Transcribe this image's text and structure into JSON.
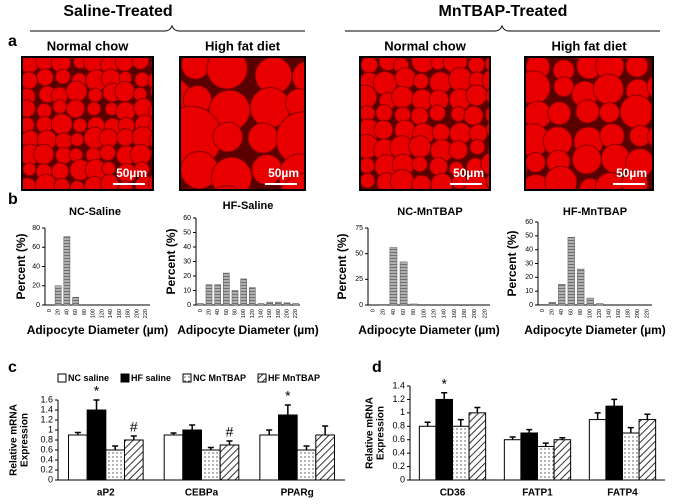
{
  "figure": {
    "headers": [
      "Saline-Treated",
      "MnTBAP-Treated"
    ],
    "panel_labels": [
      "a",
      "b",
      "c",
      "d"
    ],
    "images": [
      {
        "label": "Normal chow",
        "scale": "50µm"
      },
      {
        "label": "High fat diet",
        "scale": "50µm"
      },
      {
        "label": "Normal chow",
        "scale": "50µm"
      },
      {
        "label": "High fat diet",
        "scale": "50µm"
      }
    ]
  },
  "chart_data": [
    {
      "type": "bar",
      "title": "NC-Saline",
      "xlabel": "Adipocyte Diameter (µm)",
      "ylabel": "Percent (%)",
      "color": "#a0a0a0",
      "categories": [
        "0",
        "20",
        "40",
        "60",
        "80",
        "100",
        "120",
        "140",
        "160",
        "180",
        "200",
        "220"
      ],
      "values": [
        0,
        20,
        71,
        8,
        0,
        0,
        0,
        0,
        0,
        0,
        0,
        0
      ],
      "ylim": [
        0,
        80
      ],
      "yticks": [
        0,
        20,
        40,
        60,
        80
      ]
    },
    {
      "type": "bar",
      "title": "HF-Saline",
      "xlabel": "Adipocyte Diameter (µm)",
      "ylabel": "Percent (%)",
      "color": "#a0a0a0",
      "categories": [
        "0",
        "20",
        "40",
        "60",
        "80",
        "100",
        "120",
        "140",
        "160",
        "180",
        "200",
        "220"
      ],
      "values": [
        1,
        14,
        14,
        22,
        10,
        18,
        12,
        1,
        2,
        2,
        1.5,
        1
      ],
      "ylim": [
        0,
        60
      ],
      "yticks": [
        0,
        10,
        20,
        30,
        40,
        50,
        60
      ]
    },
    {
      "type": "bar",
      "title": "NC-MnTBAP",
      "xlabel": "Adipocyte Diameter (µm)",
      "ylabel": "Percent (%)",
      "color": "#a0a0a0",
      "categories": [
        "0",
        "20",
        "40",
        "60",
        "80",
        "100",
        "120",
        "140",
        "160",
        "180",
        "200",
        "220"
      ],
      "values": [
        0,
        0.5,
        56,
        42,
        1,
        0,
        0,
        0,
        0,
        0,
        0,
        0
      ],
      "ylim": [
        0,
        75
      ],
      "yticks": [
        0,
        25,
        50,
        75
      ]
    },
    {
      "type": "bar",
      "title": "HF-MnTBAP",
      "xlabel": "Adipocyte Diameter (µm)",
      "ylabel": "Percent (%)",
      "color": "#a0a0a0",
      "categories": [
        "0",
        "20",
        "40",
        "60",
        "80",
        "100",
        "120",
        "140",
        "160",
        "180",
        "200",
        "220"
      ],
      "values": [
        0.5,
        2,
        15,
        49,
        26,
        5,
        1,
        0,
        0,
        0,
        0,
        0
      ],
      "ylim": [
        0,
        60
      ],
      "yticks": [
        0,
        10,
        20,
        30,
        40,
        50,
        60
      ]
    },
    {
      "type": "bar",
      "ylabel": [
        "Relative mRNA",
        "Expression"
      ],
      "legend": "top",
      "categories": [
        "aP2",
        "CEBPa",
        "PPARg"
      ],
      "ylim": [
        0,
        1.6
      ],
      "yticks": [
        0,
        0.2,
        0.4,
        0.6,
        0.8,
        1,
        1.2,
        1.4,
        1.6
      ],
      "series": [
        {
          "name": "NC saline",
          "color": "#ffffff",
          "values": [
            0.9,
            0.9,
            0.9
          ],
          "errors": [
            0.05,
            0.04,
            0.1
          ],
          "annotations": [
            null,
            null,
            null
          ]
        },
        {
          "name": "HF saline",
          "color": "#000000",
          "values": [
            1.4,
            1.0,
            1.3
          ],
          "errors": [
            0.2,
            0.1,
            0.2
          ],
          "annotations": [
            "*",
            null,
            "*"
          ]
        },
        {
          "name": "NC MnTBAP",
          "color": "#ffffff",
          "pattern": "dots",
          "values": [
            0.6,
            0.6,
            0.6
          ],
          "errors": [
            0.08,
            0.05,
            0.08
          ],
          "annotations": [
            null,
            null,
            null
          ]
        },
        {
          "name": "HF MnTBAP",
          "color": "#ffffff",
          "pattern": "hatch",
          "values": [
            0.8,
            0.7,
            0.9
          ],
          "errors": [
            0.08,
            0.08,
            0.18
          ],
          "annotations": [
            "#",
            "#",
            null
          ]
        }
      ]
    },
    {
      "type": "bar",
      "ylabel": [
        "Relative mRNA",
        "Expression"
      ],
      "categories": [
        "CD36",
        "FATP1",
        "FATP4"
      ],
      "ylim": [
        0,
        1.4
      ],
      "yticks": [
        0,
        0.2,
        0.4,
        0.6,
        0.8,
        1,
        1.2,
        1.4
      ],
      "series": [
        {
          "color": "#ffffff",
          "values": [
            0.8,
            0.6,
            0.9
          ],
          "errors": [
            0.06,
            0.04,
            0.1
          ],
          "annotations": [
            null,
            null,
            null
          ]
        },
        {
          "color": "#000000",
          "values": [
            1.2,
            0.7,
            1.1
          ],
          "errors": [
            0.1,
            0.05,
            0.1
          ],
          "annotations": [
            "*",
            null,
            null
          ]
        },
        {
          "color": "#ffffff",
          "pattern": "dots",
          "values": [
            0.8,
            0.5,
            0.7
          ],
          "errors": [
            0.1,
            0.05,
            0.08
          ],
          "annotations": [
            null,
            null,
            null
          ]
        },
        {
          "color": "#ffffff",
          "pattern": "hatch",
          "values": [
            1.0,
            0.6,
            0.9
          ],
          "errors": [
            0.08,
            0.03,
            0.08
          ],
          "annotations": [
            null,
            null,
            null
          ]
        }
      ]
    }
  ]
}
